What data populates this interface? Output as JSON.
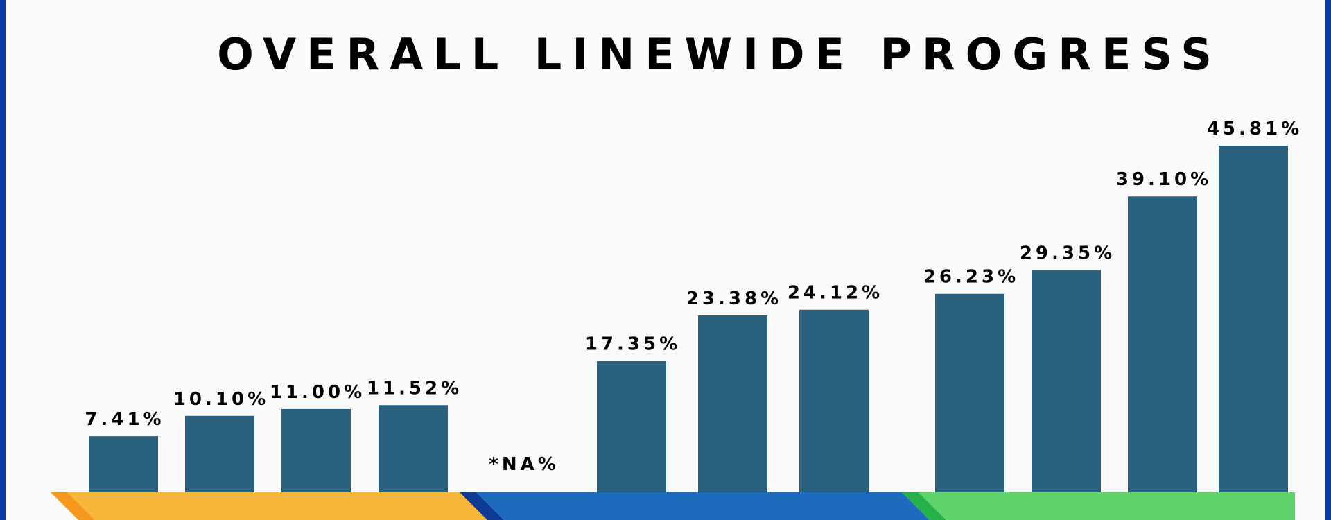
{
  "chart_data": {
    "type": "bar",
    "title": "OVERALL LINEWIDE PROGRESS",
    "xlabel": "",
    "ylabel": "",
    "ylim": [
      0,
      50
    ],
    "grid": false,
    "legend": "none",
    "bar_color": "#29617f",
    "groups": [
      {
        "color": "#f6b63a",
        "accent": "#f39a1e",
        "bars": [
          {
            "label": "7.41%",
            "value": 7.41
          },
          {
            "label": "10.10%",
            "value": 10.1
          },
          {
            "label": "11.00%",
            "value": 11.0
          },
          {
            "label": "11.52%",
            "value": 11.52
          }
        ]
      },
      {
        "color": "#1c6bbd",
        "accent": "#0f3b93",
        "bars": [
          {
            "label": "*NA%",
            "value": null
          },
          {
            "label": "17.35%",
            "value": 17.35
          },
          {
            "label": "23.38%",
            "value": 23.38
          },
          {
            "label": "24.12%",
            "value": 24.12
          }
        ]
      },
      {
        "color": "#5fd46a",
        "accent": "#28b04a",
        "bars": [
          {
            "label": "26.23%",
            "value": 26.23
          },
          {
            "label": "29.35%",
            "value": 29.35
          },
          {
            "label": "39.10%",
            "value": 39.1
          },
          {
            "label": "45.81%",
            "value": 45.81
          }
        ]
      }
    ]
  }
}
